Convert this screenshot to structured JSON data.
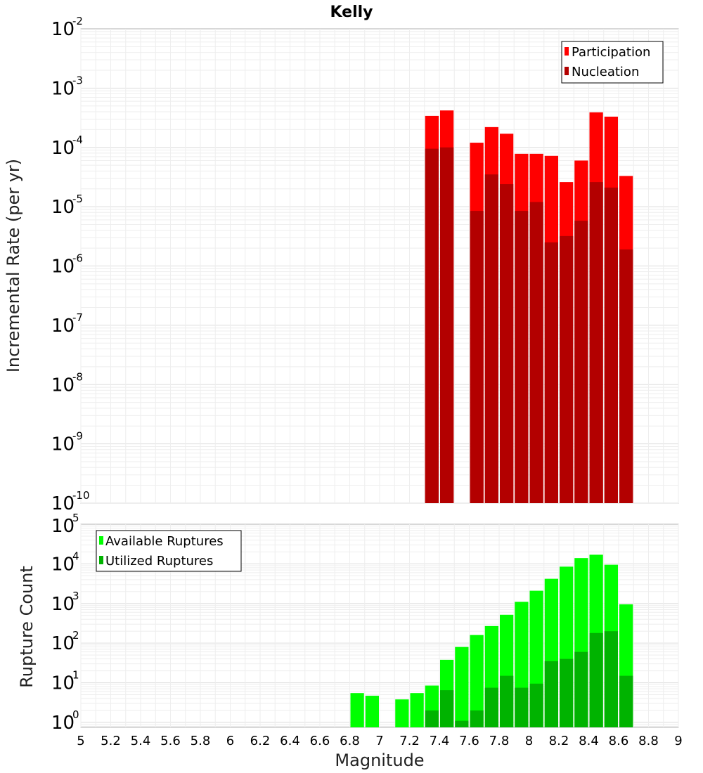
{
  "chart_data": [
    {
      "type": "bar",
      "title": "Kelly",
      "ylabel": "Incremental Rate (per yr)",
      "xlabel": "",
      "scale_y": "log",
      "ylim": [
        1e-10,
        0.01
      ],
      "xlim": [
        5,
        9
      ],
      "grid": true,
      "legend_position": "top-right",
      "y_ticks": [
        {
          "base": "10",
          "exp": "-10"
        },
        {
          "base": "10",
          "exp": "-9"
        },
        {
          "base": "10",
          "exp": "-8"
        },
        {
          "base": "10",
          "exp": "-7"
        },
        {
          "base": "10",
          "exp": "-6"
        },
        {
          "base": "10",
          "exp": "-5"
        },
        {
          "base": "10",
          "exp": "-4"
        },
        {
          "base": "10",
          "exp": "-3"
        },
        {
          "base": "10",
          "exp": "-2"
        }
      ],
      "series": [
        {
          "name": "Participation",
          "color": "#ff0000",
          "x": [
            7.35,
            7.45,
            7.65,
            7.75,
            7.85,
            7.95,
            8.05,
            8.15,
            8.25,
            8.35,
            8.45,
            8.55,
            8.65
          ],
          "values": [
            0.00034,
            0.00042,
            0.00012,
            0.00022,
            0.00017,
            7.8e-05,
            7.8e-05,
            7.2e-05,
            2.6e-05,
            6e-05,
            0.00039,
            0.00033,
            3.3e-05
          ]
        },
        {
          "name": "Nucleation",
          "color": "#b30000",
          "x": [
            7.35,
            7.45,
            7.65,
            7.75,
            7.85,
            7.95,
            8.05,
            8.15,
            8.25,
            8.35,
            8.45,
            8.55,
            8.65
          ],
          "values": [
            9.5e-05,
            0.0001,
            8.5e-06,
            3.5e-05,
            2.4e-05,
            8.5e-06,
            1.2e-05,
            2.5e-06,
            3.2e-06,
            5.8e-06,
            2.6e-05,
            2.1e-05,
            1.9e-06
          ]
        }
      ]
    },
    {
      "type": "bar",
      "title": "",
      "ylabel": "Rupture Count",
      "xlabel": "Magnitude",
      "scale_y": "log",
      "ylim": [
        0.75,
        100000.0
      ],
      "xlim": [
        5,
        9
      ],
      "grid": true,
      "legend_position": "top-left",
      "x_ticks": [
        "5",
        "5.2",
        "5.4",
        "5.6",
        "5.8",
        "6",
        "6.2",
        "6.4",
        "6.6",
        "6.8",
        "7",
        "7.2",
        "7.4",
        "7.6",
        "7.8",
        "8",
        "8.2",
        "8.4",
        "8.6",
        "8.8",
        "9"
      ],
      "y_ticks": [
        {
          "base": "10",
          "exp": "0"
        },
        {
          "base": "10",
          "exp": "1"
        },
        {
          "base": "10",
          "exp": "2"
        },
        {
          "base": "10",
          "exp": "3"
        },
        {
          "base": "10",
          "exp": "4"
        },
        {
          "base": "10",
          "exp": "5"
        }
      ],
      "series": [
        {
          "name": "Available Ruptures",
          "color": "#00ff00",
          "x": [
            6.85,
            6.95,
            7.15,
            7.25,
            7.35,
            7.45,
            7.55,
            7.65,
            7.75,
            7.85,
            7.95,
            8.05,
            8.15,
            8.25,
            8.35,
            8.45,
            8.55,
            8.65
          ],
          "values": [
            5.5,
            4.7,
            3.8,
            5.5,
            8.5,
            38,
            80,
            160,
            270,
            520,
            1100,
            2100,
            4200,
            8500,
            14000,
            17000,
            9500,
            950
          ]
        },
        {
          "name": "Utilized Ruptures",
          "color": "#00b300",
          "x": [
            7.35,
            7.45,
            7.55,
            7.65,
            7.75,
            7.85,
            7.95,
            8.05,
            8.15,
            8.25,
            8.35,
            8.45,
            8.55,
            8.65
          ],
          "values": [
            2,
            6.5,
            1.1,
            2,
            7.5,
            15,
            7.5,
            9.5,
            35,
            40,
            60,
            180,
            200,
            15
          ]
        }
      ]
    }
  ]
}
